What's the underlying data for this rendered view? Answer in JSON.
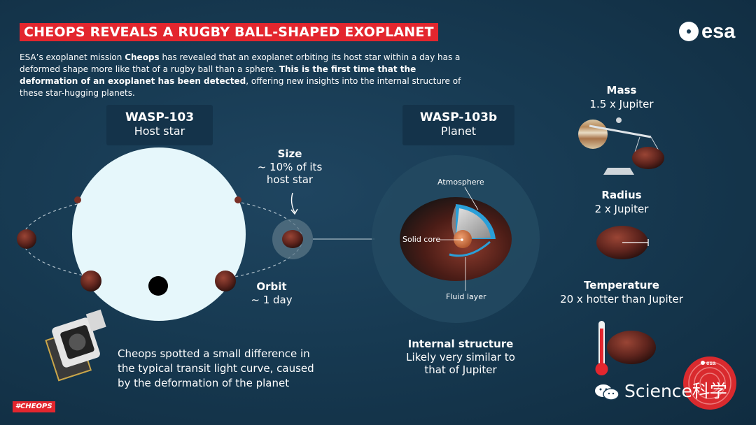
{
  "title": "CHEOPS REVEALS A RUGBY BALL-SHAPED EXOPLANET",
  "logo": "esa",
  "intro": {
    "part1": "ESA’s exoplanet mission ",
    "mission": "Cheops",
    "part2": " has revealed that an exoplanet orbiting its host star within a day has a deformed shape more like that of a rugby ball than a sphere. ",
    "highlight": "This is the first time that the deformation of an exoplanet has been detected",
    "part3": ", offering new insights into the internal structure of these star-hugging planets."
  },
  "star": {
    "name": "WASP-103",
    "desc": "Host star"
  },
  "planet": {
    "name": "WASP-103b",
    "desc": "Planet"
  },
  "size": {
    "heading": "Size",
    "line1": "~ 10% of its",
    "line2": "host star"
  },
  "orbit": {
    "heading": "Orbit",
    "value": "~ 1 day"
  },
  "structure_labels": {
    "atmosphere": "Atmosphere",
    "core": "Solid core",
    "fluid": "Fluid layer"
  },
  "internal": {
    "heading": "Internal structure",
    "line1": "Likely very similar to",
    "line2": "that of Jupiter"
  },
  "mass": {
    "heading": "Mass",
    "value": "1.5 x Jupiter"
  },
  "radius": {
    "heading": "Radius",
    "value": "2 x Jupiter"
  },
  "temperature": {
    "heading": "Temperature",
    "value": "20 x hotter than Jupiter"
  },
  "cheops_note": {
    "line1": "Cheops spotted a small difference in",
    "line2": "the typical transit light curve, caused",
    "line3": "by the deformation of the planet"
  },
  "hashtag": "#CHEOPS",
  "watermark": "Science科学",
  "badge_logo": "esa",
  "colors": {
    "accent_red": "#e3262e",
    "background": "#173a52",
    "star": "#e6f7fb",
    "atmosphere_blue": "#2a9fd8",
    "planet_brown": "#6b2a22"
  }
}
